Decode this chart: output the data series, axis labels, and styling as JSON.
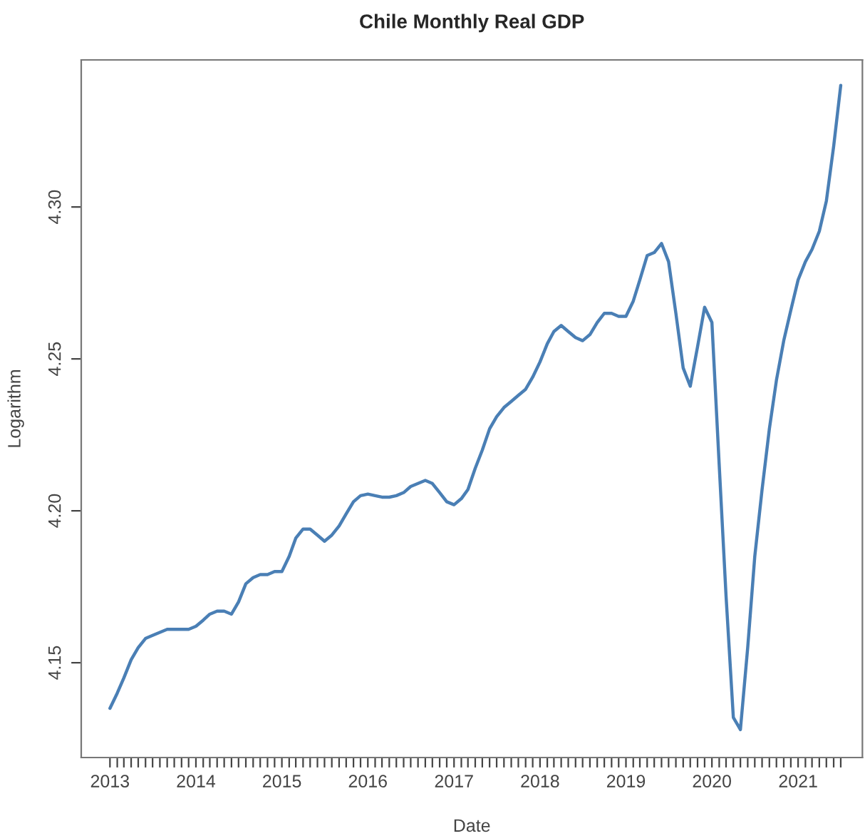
{
  "chart_data": {
    "type": "line",
    "title": "Chile Monthly Real GDP",
    "xlabel": "Date",
    "ylabel": "Logarithm",
    "x": [
      "2013-01",
      "2013-02",
      "2013-03",
      "2013-04",
      "2013-05",
      "2013-06",
      "2013-07",
      "2013-08",
      "2013-09",
      "2013-10",
      "2013-11",
      "2013-12",
      "2014-01",
      "2014-02",
      "2014-03",
      "2014-04",
      "2014-05",
      "2014-06",
      "2014-07",
      "2014-08",
      "2014-09",
      "2014-10",
      "2014-11",
      "2014-12",
      "2015-01",
      "2015-02",
      "2015-03",
      "2015-04",
      "2015-05",
      "2015-06",
      "2015-07",
      "2015-08",
      "2015-09",
      "2015-10",
      "2015-11",
      "2015-12",
      "2016-01",
      "2016-02",
      "2016-03",
      "2016-04",
      "2016-05",
      "2016-06",
      "2016-07",
      "2016-08",
      "2016-09",
      "2016-10",
      "2016-11",
      "2016-12",
      "2017-01",
      "2017-02",
      "2017-03",
      "2017-04",
      "2017-05",
      "2017-06",
      "2017-07",
      "2017-08",
      "2017-09",
      "2017-10",
      "2017-11",
      "2017-12",
      "2018-01",
      "2018-02",
      "2018-03",
      "2018-04",
      "2018-05",
      "2018-06",
      "2018-07",
      "2018-08",
      "2018-09",
      "2018-10",
      "2018-11",
      "2018-12",
      "2019-01",
      "2019-02",
      "2019-03",
      "2019-04",
      "2019-05",
      "2019-06",
      "2019-07",
      "2019-08",
      "2019-09",
      "2019-10",
      "2019-11",
      "2019-12",
      "2020-01",
      "2020-02",
      "2020-03",
      "2020-04",
      "2020-05",
      "2020-06",
      "2020-07",
      "2020-08",
      "2020-09",
      "2020-10",
      "2020-11",
      "2020-12",
      "2021-01",
      "2021-02",
      "2021-03",
      "2021-04",
      "2021-05",
      "2021-06",
      "2021-07"
    ],
    "series": [
      {
        "color": "#4a7fb5",
        "values": [
          4.135,
          4.14,
          4.145,
          4.151,
          4.155,
          4.158,
          4.159,
          4.16,
          4.161,
          4.161,
          4.161,
          4.161,
          4.162,
          4.164,
          4.166,
          4.167,
          4.167,
          4.166,
          4.17,
          4.176,
          4.178,
          4.179,
          4.179,
          4.18,
          4.18,
          4.185,
          4.191,
          4.194,
          4.194,
          4.192,
          4.19,
          4.192,
          4.195,
          4.199,
          4.203,
          4.205,
          4.2055,
          4.205,
          4.2045,
          4.2045,
          4.205,
          4.206,
          4.208,
          4.209,
          4.21,
          4.209,
          4.206,
          4.203,
          4.202,
          4.204,
          4.207,
          4.214,
          4.22,
          4.227,
          4.231,
          4.234,
          4.236,
          4.238,
          4.24,
          4.244,
          4.249,
          4.255,
          4.259,
          4.261,
          4.259,
          4.257,
          4.256,
          4.258,
          4.262,
          4.265,
          4.265,
          4.264,
          4.264,
          4.269,
          4.276,
          4.284,
          4.285,
          4.288,
          4.282,
          4.265,
          4.247,
          4.241,
          4.254,
          4.267,
          4.262,
          4.215,
          4.172,
          4.132,
          4.128,
          4.155,
          4.185,
          4.207,
          4.227,
          4.243,
          4.256,
          4.266,
          4.276,
          4.282,
          4.286,
          4.292,
          4.302,
          4.32,
          4.34
        ]
      }
    ],
    "xlim": [
      "2012-09",
      "2021-10"
    ],
    "ylim": [
      4.1188,
      4.3484
    ],
    "yticks": [
      {
        "value": 4.15,
        "label": "4.15"
      },
      {
        "value": 4.2,
        "label": "4.20"
      },
      {
        "value": 4.25,
        "label": "4.25"
      },
      {
        "value": 4.3,
        "label": "4.30"
      }
    ],
    "xticks": [
      {
        "value": "2013-01",
        "label": "2013"
      },
      {
        "value": "2013-02",
        "label": null
      },
      {
        "value": "2013-03",
        "label": null
      },
      {
        "value": "2013-04",
        "label": null
      },
      {
        "value": "2013-05",
        "label": null
      },
      {
        "value": "2013-06",
        "label": null
      },
      {
        "value": "2013-07",
        "label": null
      },
      {
        "value": "2013-08",
        "label": null
      },
      {
        "value": "2013-09",
        "label": null
      },
      {
        "value": "2013-10",
        "label": null
      },
      {
        "value": "2013-11",
        "label": null
      },
      {
        "value": "2013-12",
        "label": null
      },
      {
        "value": "2014-01",
        "label": "2014"
      },
      {
        "value": "2014-02",
        "label": null
      },
      {
        "value": "2014-03",
        "label": null
      },
      {
        "value": "2014-04",
        "label": null
      },
      {
        "value": "2014-05",
        "label": null
      },
      {
        "value": "2014-06",
        "label": null
      },
      {
        "value": "2014-07",
        "label": null
      },
      {
        "value": "2014-08",
        "label": null
      },
      {
        "value": "2014-09",
        "label": null
      },
      {
        "value": "2014-10",
        "label": null
      },
      {
        "value": "2014-11",
        "label": null
      },
      {
        "value": "2014-12",
        "label": null
      },
      {
        "value": "2015-01",
        "label": "2015"
      },
      {
        "value": "2015-02",
        "label": null
      },
      {
        "value": "2015-03",
        "label": null
      },
      {
        "value": "2015-04",
        "label": null
      },
      {
        "value": "2015-05",
        "label": null
      },
      {
        "value": "2015-06",
        "label": null
      },
      {
        "value": "2015-07",
        "label": null
      },
      {
        "value": "2015-08",
        "label": null
      },
      {
        "value": "2015-09",
        "label": null
      },
      {
        "value": "2015-10",
        "label": null
      },
      {
        "value": "2015-11",
        "label": null
      },
      {
        "value": "2015-12",
        "label": null
      },
      {
        "value": "2016-01",
        "label": "2016"
      },
      {
        "value": "2016-02",
        "label": null
      },
      {
        "value": "2016-03",
        "label": null
      },
      {
        "value": "2016-04",
        "label": null
      },
      {
        "value": "2016-05",
        "label": null
      },
      {
        "value": "2016-06",
        "label": null
      },
      {
        "value": "2016-07",
        "label": null
      },
      {
        "value": "2016-08",
        "label": null
      },
      {
        "value": "2016-09",
        "label": null
      },
      {
        "value": "2016-10",
        "label": null
      },
      {
        "value": "2016-11",
        "label": null
      },
      {
        "value": "2016-12",
        "label": null
      },
      {
        "value": "2017-01",
        "label": "2017"
      },
      {
        "value": "2017-02",
        "label": null
      },
      {
        "value": "2017-03",
        "label": null
      },
      {
        "value": "2017-04",
        "label": null
      },
      {
        "value": "2017-05",
        "label": null
      },
      {
        "value": "2017-06",
        "label": null
      },
      {
        "value": "2017-07",
        "label": null
      },
      {
        "value": "2017-08",
        "label": null
      },
      {
        "value": "2017-09",
        "label": null
      },
      {
        "value": "2017-10",
        "label": null
      },
      {
        "value": "2017-11",
        "label": null
      },
      {
        "value": "2017-12",
        "label": null
      },
      {
        "value": "2018-01",
        "label": "2018"
      },
      {
        "value": "2018-02",
        "label": null
      },
      {
        "value": "2018-03",
        "label": null
      },
      {
        "value": "2018-04",
        "label": null
      },
      {
        "value": "2018-05",
        "label": null
      },
      {
        "value": "2018-06",
        "label": null
      },
      {
        "value": "2018-07",
        "label": null
      },
      {
        "value": "2018-08",
        "label": null
      },
      {
        "value": "2018-09",
        "label": null
      },
      {
        "value": "2018-10",
        "label": null
      },
      {
        "value": "2018-11",
        "label": null
      },
      {
        "value": "2018-12",
        "label": null
      },
      {
        "value": "2019-01",
        "label": "2019"
      },
      {
        "value": "2019-02",
        "label": null
      },
      {
        "value": "2019-03",
        "label": null
      },
      {
        "value": "2019-04",
        "label": null
      },
      {
        "value": "2019-05",
        "label": null
      },
      {
        "value": "2019-06",
        "label": null
      },
      {
        "value": "2019-07",
        "label": null
      },
      {
        "value": "2019-08",
        "label": null
      },
      {
        "value": "2019-09",
        "label": null
      },
      {
        "value": "2019-10",
        "label": null
      },
      {
        "value": "2019-11",
        "label": null
      },
      {
        "value": "2019-12",
        "label": null
      },
      {
        "value": "2020-01",
        "label": "2020"
      },
      {
        "value": "2020-02",
        "label": null
      },
      {
        "value": "2020-03",
        "label": null
      },
      {
        "value": "2020-04",
        "label": null
      },
      {
        "value": "2020-05",
        "label": null
      },
      {
        "value": "2020-06",
        "label": null
      },
      {
        "value": "2020-07",
        "label": null
      },
      {
        "value": "2020-08",
        "label": null
      },
      {
        "value": "2020-09",
        "label": null
      },
      {
        "value": "2020-10",
        "label": null
      },
      {
        "value": "2020-11",
        "label": null
      },
      {
        "value": "2020-12",
        "label": null
      },
      {
        "value": "2021-01",
        "label": "2021"
      },
      {
        "value": "2021-02",
        "label": null
      },
      {
        "value": "2021-03",
        "label": null
      },
      {
        "value": "2021-04",
        "label": null
      },
      {
        "value": "2021-05",
        "label": null
      },
      {
        "value": "2021-06",
        "label": null
      },
      {
        "value": "2021-07",
        "label": null
      }
    ]
  }
}
